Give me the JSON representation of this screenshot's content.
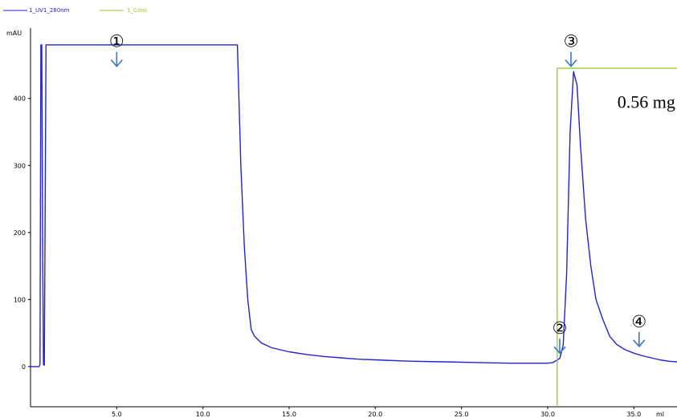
{
  "chart_data": {
    "type": "line",
    "xlim": [
      0,
      37.5
    ],
    "ylim": [
      -60,
      505
    ],
    "xlabel": "ml",
    "ylabel": "mAU",
    "grid": false,
    "legend_placement": "top-left",
    "x_ticks": [
      {
        "value": 5.0,
        "label": "5.0"
      },
      {
        "value": 10.0,
        "label": "10.0"
      },
      {
        "value": 15.0,
        "label": "15.0"
      },
      {
        "value": 20.0,
        "label": "20.0"
      },
      {
        "value": 25.0,
        "label": "25.0"
      },
      {
        "value": 30.0,
        "label": "30.0"
      },
      {
        "value": 35.0,
        "label": "35.0"
      }
    ],
    "y_ticks": [
      {
        "value": 0,
        "label": "0"
      },
      {
        "value": 100,
        "label": "100"
      },
      {
        "value": 200,
        "label": "200"
      },
      {
        "value": 300,
        "label": "300"
      },
      {
        "value": 400,
        "label": "400"
      }
    ],
    "series": [
      {
        "name": "1_UV1_280nm",
        "color": "#2323d6",
        "points": [
          [
            0.0,
            0
          ],
          [
            0.5,
            0
          ],
          [
            0.55,
            3
          ],
          [
            0.6,
            480
          ],
          [
            0.65,
            480
          ],
          [
            0.7,
            200
          ],
          [
            0.75,
            3
          ],
          [
            0.8,
            2
          ],
          [
            0.9,
            480
          ],
          [
            12.0,
            480
          ],
          [
            12.2,
            300
          ],
          [
            12.4,
            180
          ],
          [
            12.6,
            100
          ],
          [
            12.8,
            55
          ],
          [
            13.0,
            45
          ],
          [
            13.4,
            35
          ],
          [
            14.0,
            28
          ],
          [
            15.0,
            22
          ],
          [
            16.0,
            18
          ],
          [
            17.0,
            15
          ],
          [
            18.0,
            13
          ],
          [
            19.0,
            11
          ],
          [
            20.0,
            10
          ],
          [
            22.0,
            8
          ],
          [
            24.0,
            7
          ],
          [
            26.0,
            6
          ],
          [
            28.0,
            5
          ],
          [
            29.5,
            5
          ],
          [
            30.0,
            5
          ],
          [
            30.3,
            6
          ],
          [
            30.5,
            9
          ],
          [
            30.7,
            12
          ],
          [
            30.9,
            32
          ],
          [
            31.1,
            140
          ],
          [
            31.3,
            350
          ],
          [
            31.5,
            440
          ],
          [
            31.7,
            420
          ],
          [
            31.9,
            330
          ],
          [
            32.2,
            220
          ],
          [
            32.5,
            150
          ],
          [
            32.8,
            100
          ],
          [
            33.2,
            70
          ],
          [
            33.6,
            45
          ],
          [
            34.0,
            33
          ],
          [
            34.5,
            25
          ],
          [
            35.0,
            20
          ],
          [
            35.5,
            16
          ],
          [
            36.0,
            13
          ],
          [
            36.5,
            10
          ],
          [
            37.0,
            8
          ],
          [
            37.5,
            7
          ]
        ]
      },
      {
        "name": "1_Conc",
        "color": "#99cc33",
        "points": [
          [
            30.55,
            -60
          ],
          [
            30.55,
            445
          ],
          [
            37.5,
            445
          ]
        ]
      }
    ],
    "annotations": [
      {
        "label": "①",
        "x": 5.0,
        "y": 448
      },
      {
        "label": "②",
        "x": 30.7,
        "y": 20
      },
      {
        "label": "③",
        "x": 31.35,
        "y": 448
      },
      {
        "label": "④",
        "x": 35.3,
        "y": 30
      }
    ],
    "text_annotation": {
      "text": "0.56 mg",
      "x": 37.4,
      "y": 398
    }
  }
}
